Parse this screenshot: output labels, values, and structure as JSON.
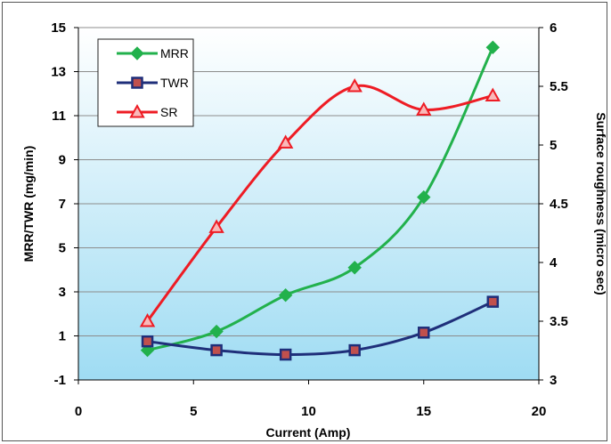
{
  "chart_data": {
    "type": "line",
    "x": [
      3,
      6,
      9,
      12,
      15,
      18
    ],
    "xlabel": "Current (Amp)",
    "ylabel_left": "MRR/TWR  (mg/min)",
    "ylabel_right": "Surface roughness  (micro sec)",
    "xlim": [
      0,
      20
    ],
    "xticks": [
      0,
      5,
      10,
      15,
      20
    ],
    "ylim_left": [
      -1,
      15
    ],
    "yticks_left": [
      -1,
      1,
      3,
      5,
      7,
      9,
      11,
      13,
      15
    ],
    "ylim_right": [
      3,
      6
    ],
    "yticks_right": [
      "3",
      "3.5",
      "4",
      "4.5",
      "5",
      "5.5",
      "6"
    ],
    "legend_position": "top-left",
    "series": [
      {
        "name": "MRR",
        "axis": "left",
        "marker": "diamond",
        "color": "#22b14c",
        "values": [
          0.35,
          1.2,
          2.85,
          4.1,
          7.3,
          14.1
        ]
      },
      {
        "name": "TWR",
        "axis": "left",
        "marker": "square",
        "color": "#1f2f7a",
        "values": [
          0.75,
          0.35,
          0.15,
          0.35,
          1.15,
          2.55
        ]
      },
      {
        "name": "SR",
        "axis": "right",
        "marker": "triangle",
        "color": "#ee1c24",
        "values": [
          3.5,
          4.3,
          5.02,
          5.5,
          5.3,
          5.42
        ]
      }
    ]
  }
}
